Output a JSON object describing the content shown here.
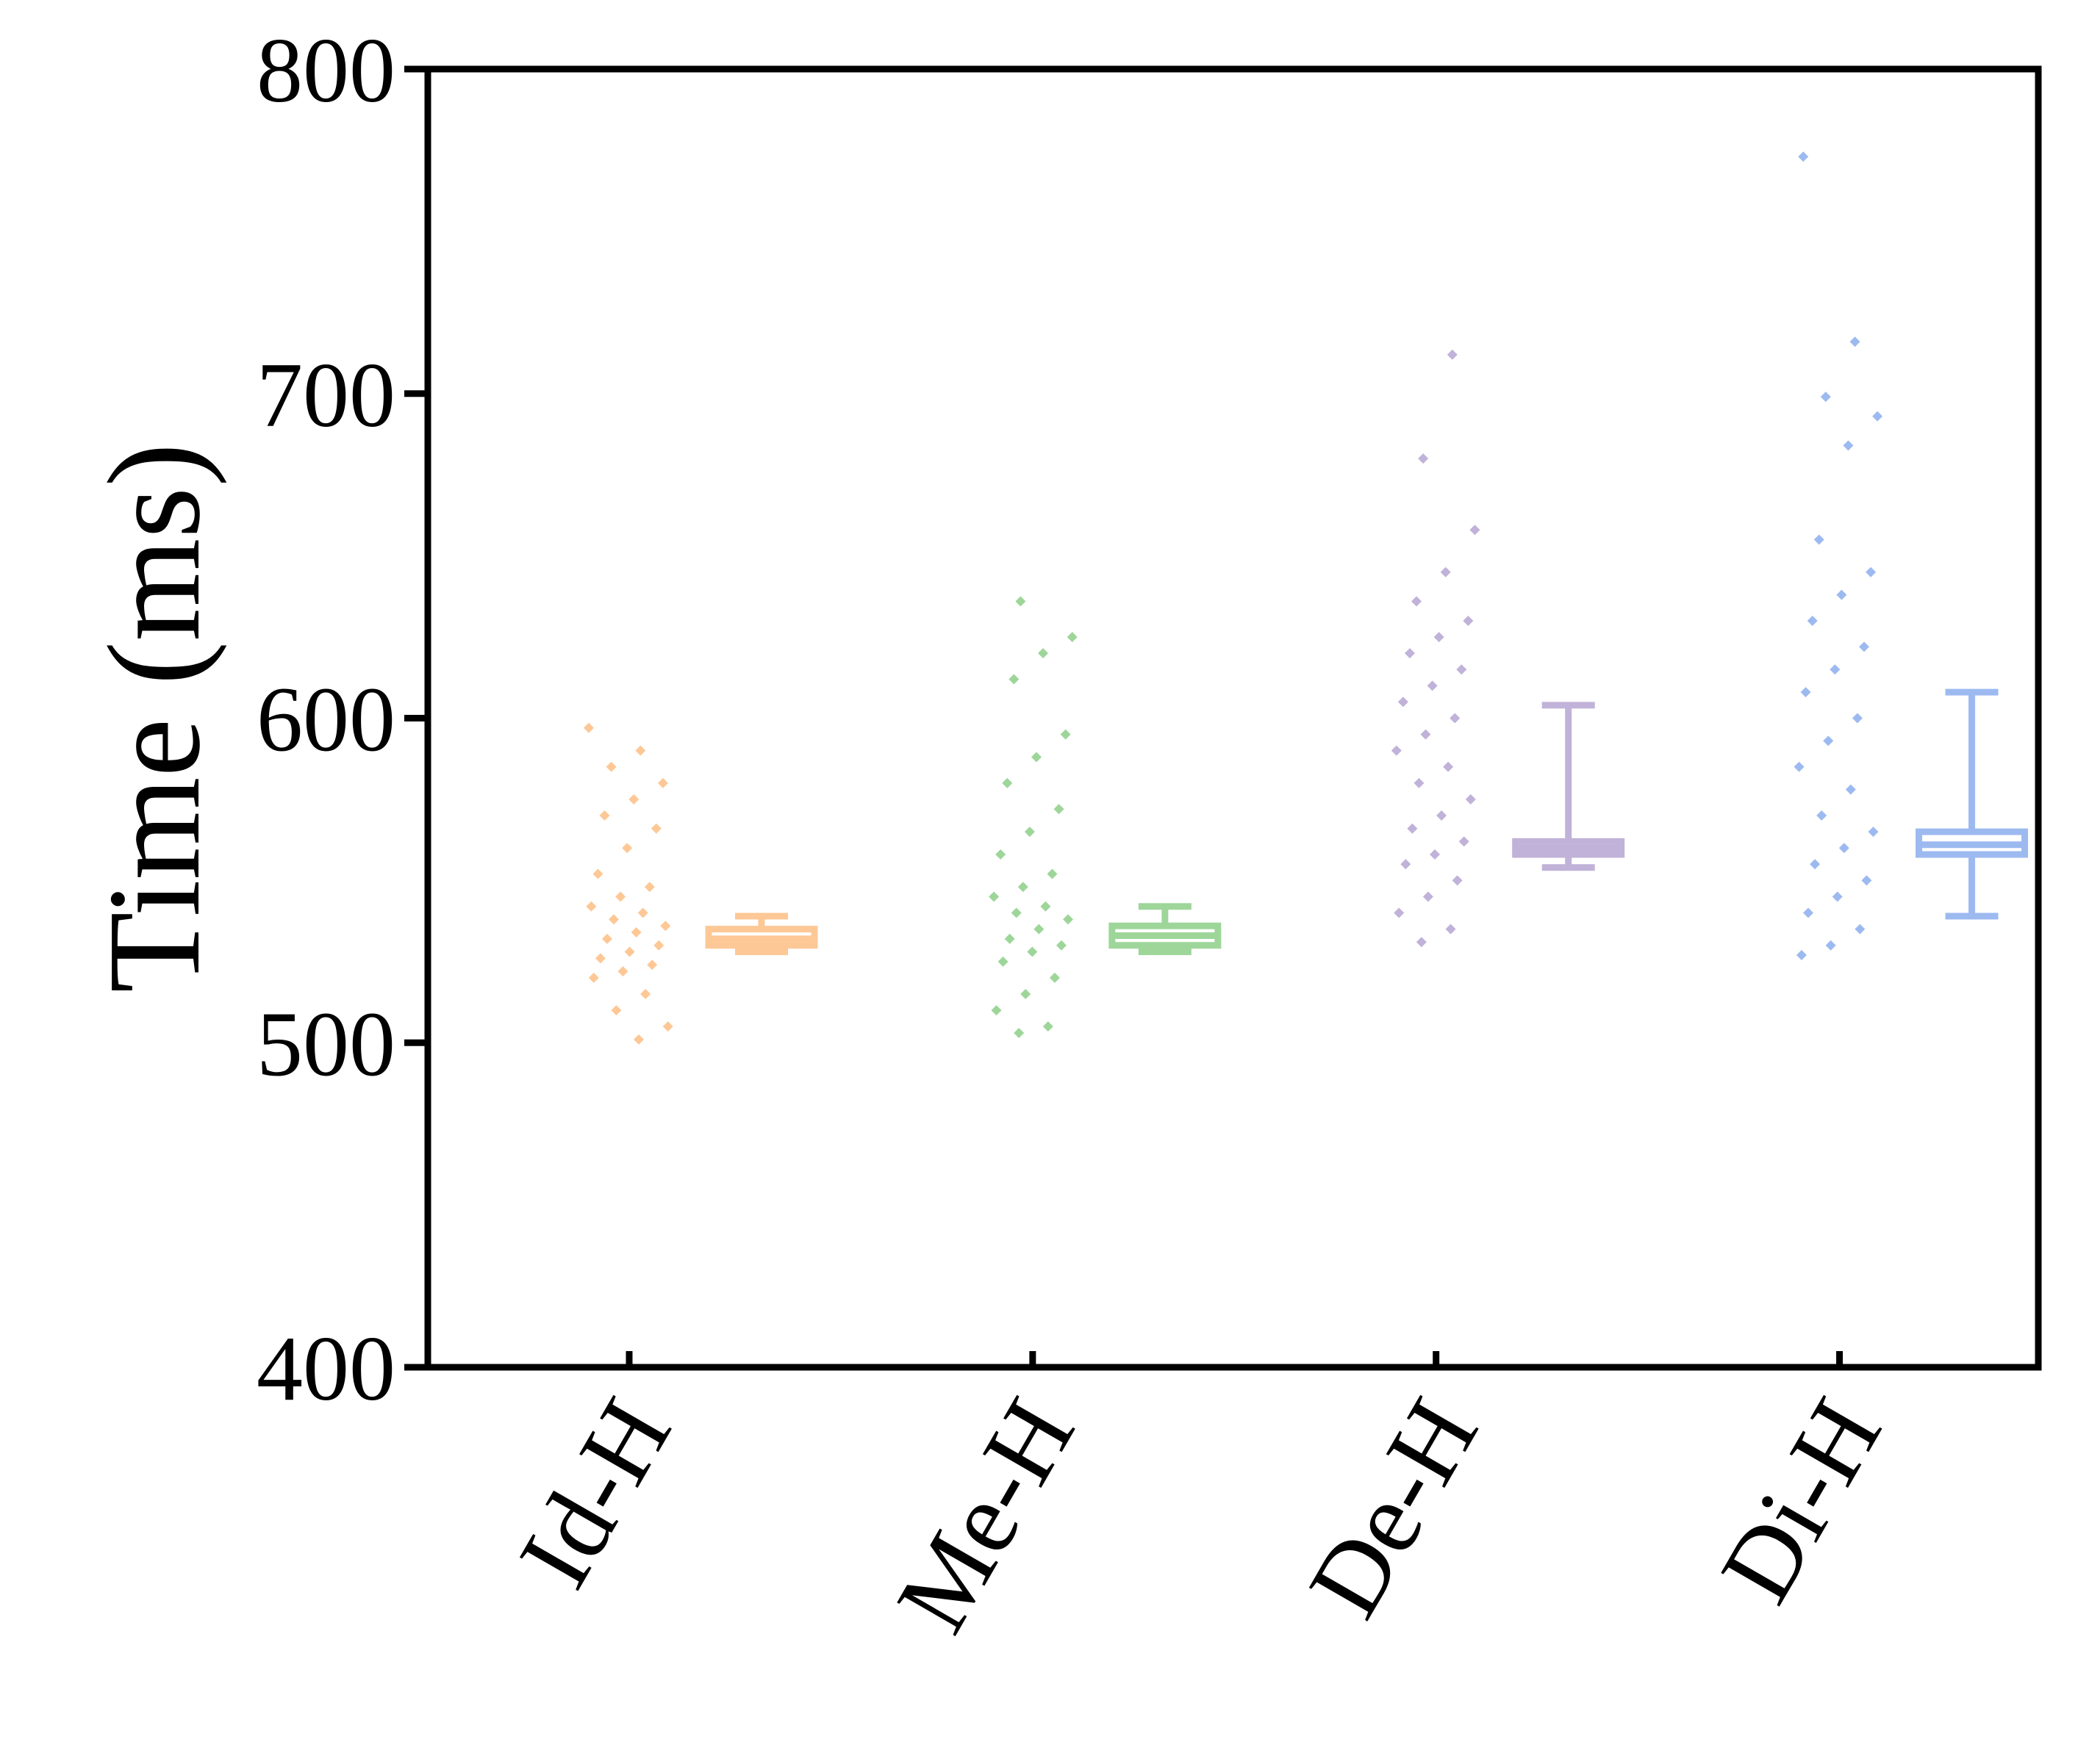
{
  "chart_data": {
    "type": "box",
    "ylabel": "Time (ms)",
    "categories": [
      "Id-H",
      "Me-H",
      "De-H",
      "Di-H"
    ],
    "groups": [
      {
        "color": "#fdc896",
        "whislo": 528,
        "q1": 530,
        "med": 532,
        "q3": 535,
        "whishi": 539,
        "points": [
          597,
          590,
          585,
          580,
          575,
          570,
          566,
          560,
          552,
          548,
          545,
          542,
          540,
          538,
          536,
          534,
          532,
          530,
          528,
          526,
          524,
          522,
          520,
          515,
          510,
          505,
          501
        ]
      },
      {
        "color": "#9ed69a",
        "whislo": 528,
        "q1": 530,
        "med": 533,
        "q3": 536,
        "whishi": 542,
        "points": [
          636,
          625,
          620,
          612,
          595,
          588,
          580,
          572,
          565,
          558,
          552,
          548,
          545,
          542,
          540,
          538,
          535,
          532,
          530,
          528,
          525,
          520,
          515,
          510,
          505,
          503
        ]
      },
      {
        "color": "#c0b2d8",
        "whislo": 554,
        "q1": 558,
        "med": 560,
        "q3": 562,
        "whishi": 604,
        "points": [
          712,
          680,
          658,
          645,
          636,
          630,
          625,
          620,
          615,
          610,
          605,
          600,
          595,
          590,
          585,
          580,
          575,
          570,
          566,
          562,
          558,
          555,
          550,
          545,
          540,
          535,
          531
        ]
      },
      {
        "color": "#9dbaf0",
        "whislo": 539,
        "q1": 558,
        "med": 561,
        "q3": 565,
        "whishi": 608,
        "points": [
          773,
          716,
          699,
          693,
          684,
          655,
          645,
          638,
          630,
          622,
          615,
          608,
          600,
          593,
          585,
          578,
          570,
          565,
          560,
          555,
          550,
          545,
          540,
          535,
          530,
          527
        ]
      }
    ],
    "ylim": [
      400,
      800
    ],
    "yticks": [
      400,
      500,
      600,
      700,
      800
    ]
  }
}
